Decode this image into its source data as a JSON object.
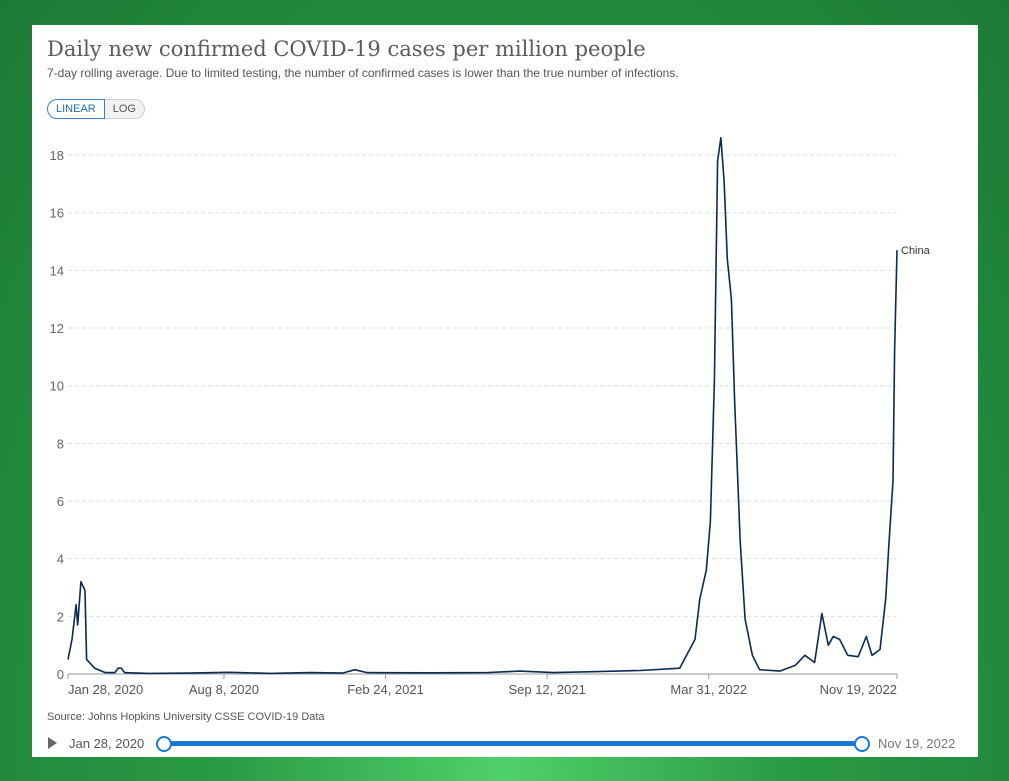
{
  "header": {
    "title": "Daily new confirmed COVID-19 cases per million people",
    "subtitle": "7-day rolling average. Due to limited testing, the number of confirmed cases is lower than the true number of infections."
  },
  "scale": {
    "linear": "LINEAR",
    "log": "LOG",
    "selected": "LINEAR"
  },
  "source": "Source: Johns Hopkins University CSSE COVID-19 Data",
  "timeline": {
    "start": "Jan 28, 2020",
    "end": "Nov 19, 2022"
  },
  "chart_data": {
    "type": "line",
    "title": "Daily new confirmed COVID-19 cases per million people",
    "xlabel": "",
    "ylabel": "",
    "x_unit": "days since Jan 28, 2020",
    "xlim": [
      0,
      1026
    ],
    "ylim": [
      0,
      18.5
    ],
    "yticks": [
      0,
      2,
      4,
      6,
      8,
      10,
      12,
      14,
      16,
      18
    ],
    "xticks": [
      {
        "day": 0,
        "label": "Jan 28, 2020"
      },
      {
        "day": 193,
        "label": "Aug 8, 2020"
      },
      {
        "day": 393,
        "label": "Feb 24, 2021"
      },
      {
        "day": 593,
        "label": "Sep 12, 2021"
      },
      {
        "day": 793,
        "label": "Mar 31, 2022"
      },
      {
        "day": 1026,
        "label": "Nov 19, 2022"
      }
    ],
    "grid": true,
    "series": [
      {
        "name": "China",
        "color": "#0b2a52",
        "points": [
          [
            0,
            0.5
          ],
          [
            5,
            1.2
          ],
          [
            10,
            2.4
          ],
          [
            12,
            1.7
          ],
          [
            16,
            3.2
          ],
          [
            21,
            2.9
          ],
          [
            23,
            0.5
          ],
          [
            33,
            0.2
          ],
          [
            46,
            0.05
          ],
          [
            58,
            0.05
          ],
          [
            62,
            0.2
          ],
          [
            66,
            0.2
          ],
          [
            70,
            0.05
          ],
          [
            100,
            0.02
          ],
          [
            150,
            0.03
          ],
          [
            200,
            0.06
          ],
          [
            250,
            0.02
          ],
          [
            300,
            0.05
          ],
          [
            340,
            0.03
          ],
          [
            355,
            0.15
          ],
          [
            370,
            0.05
          ],
          [
            450,
            0.04
          ],
          [
            520,
            0.05
          ],
          [
            559,
            0.1
          ],
          [
            600,
            0.05
          ],
          [
            650,
            0.08
          ],
          [
            708,
            0.12
          ],
          [
            757,
            0.2
          ],
          [
            776,
            1.2
          ],
          [
            782,
            2.6
          ],
          [
            790,
            3.6
          ],
          [
            795,
            5.3
          ],
          [
            800,
            10.2
          ],
          [
            804,
            17.8
          ],
          [
            808,
            18.6
          ],
          [
            812,
            17.1
          ],
          [
            816,
            14.4
          ],
          [
            821,
            13
          ],
          [
            825,
            9.5
          ],
          [
            832,
            4.6
          ],
          [
            838,
            1.9
          ],
          [
            847,
            0.65
          ],
          [
            856,
            0.15
          ],
          [
            881,
            0.1
          ],
          [
            900,
            0.3
          ],
          [
            912,
            0.65
          ],
          [
            924,
            0.4
          ],
          [
            933,
            2.1
          ],
          [
            941,
            1.0
          ],
          [
            947,
            1.3
          ],
          [
            955,
            1.2
          ],
          [
            965,
            0.65
          ],
          [
            978,
            0.6
          ],
          [
            988,
            1.3
          ],
          [
            995,
            0.65
          ],
          [
            1005,
            0.85
          ],
          [
            1012,
            2.6
          ],
          [
            1016,
            4.5
          ],
          [
            1021,
            6.7
          ],
          [
            1023,
            11.2
          ],
          [
            1026,
            14.7
          ]
        ]
      }
    ]
  }
}
